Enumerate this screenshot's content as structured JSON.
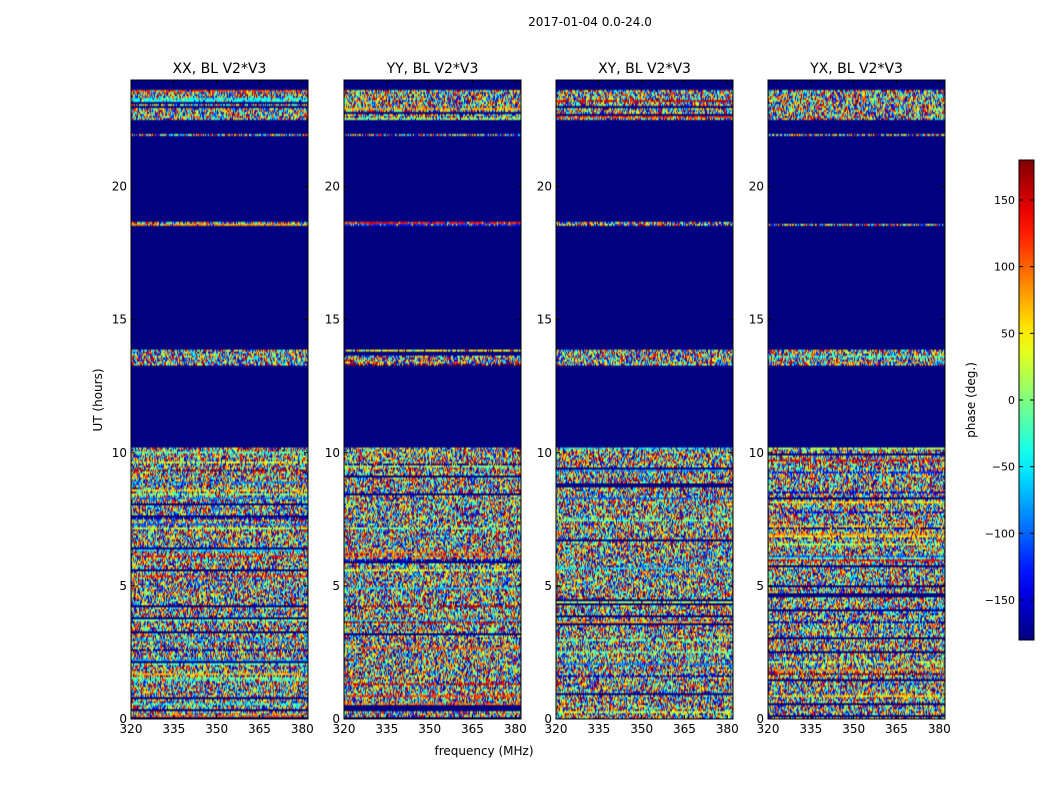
{
  "figure": {
    "suptitle": "2017-01-04 0.0-24.0",
    "xlabel": "frequency (MHz)",
    "ylabel": "UT (hours)"
  },
  "chart_data": {
    "type": "heatmap",
    "title": "2017-01-04 0.0-24.0",
    "xlabel": "frequency (MHz)",
    "ylabel": "UT (hours)",
    "xlim": [
      320,
      382
    ],
    "ylim": [
      0,
      24
    ],
    "xticks": [
      320,
      335,
      350,
      365,
      380
    ],
    "yticks": [
      0,
      5,
      10,
      15,
      20
    ],
    "panels": [
      {
        "title": "XX, BL V2*V3",
        "id": "xx"
      },
      {
        "title": "YY, BL V2*V3",
        "id": "yy"
      },
      {
        "title": "XY, BL V2*V3",
        "id": "xy"
      },
      {
        "title": "YX, BL V2*V3",
        "id": "yx"
      }
    ],
    "masked_value": -180,
    "data_intervals_hours": [
      [
        0.0,
        10.2
      ],
      [
        13.3,
        13.9
      ],
      [
        18.55,
        18.65
      ],
      [
        21.9,
        22.0
      ],
      [
        22.5,
        23.6
      ]
    ],
    "colorbar": {
      "label": "phase (deg.)",
      "range": [
        -180,
        180
      ],
      "ticks": [
        -150,
        -100,
        -50,
        0,
        50,
        100,
        150
      ],
      "tick_labels": [
        "−150",
        "−100",
        "−50",
        "0",
        "50",
        "100",
        "150"
      ],
      "colormap": "jet"
    }
  }
}
